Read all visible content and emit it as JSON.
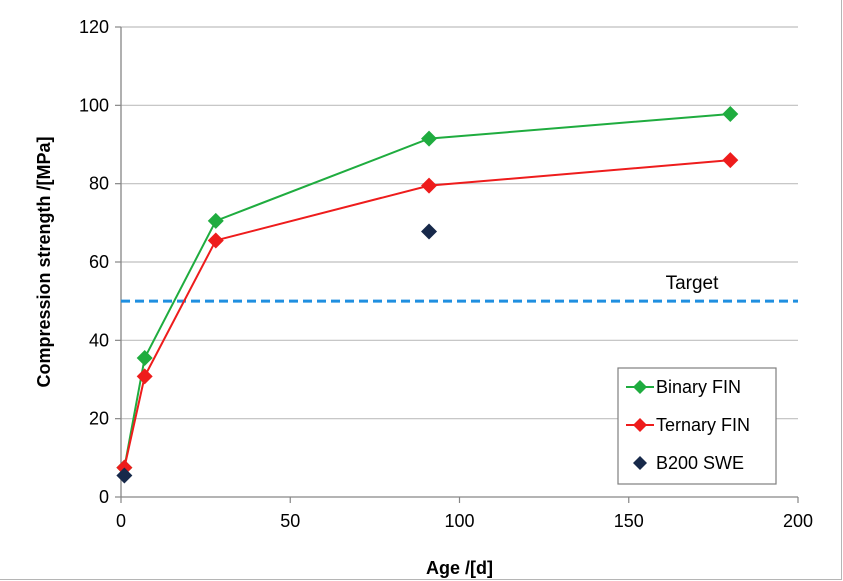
{
  "chart_data": {
    "type": "line",
    "xlabel": "Age /[d]",
    "ylabel": "Compression strength /[MPa]",
    "xlim": [
      0,
      200
    ],
    "ylim": [
      0,
      120
    ],
    "xticks": [
      0,
      50,
      100,
      150,
      200
    ],
    "yticks": [
      0,
      20,
      40,
      60,
      80,
      100,
      120
    ],
    "grid": "horizontal",
    "legend_position": "bottom-right",
    "series": [
      {
        "name": "Binary FIN",
        "style": "line-with-diamond-markers",
        "color": "#1fac3f",
        "points": [
          [
            1,
            7.5
          ],
          [
            7,
            35.5
          ],
          [
            28,
            70.5
          ],
          [
            91,
            91.5
          ],
          [
            180,
            97.8
          ]
        ]
      },
      {
        "name": "Ternary FIN",
        "style": "line-with-diamond-markers",
        "color": "#ee1c1c",
        "points": [
          [
            1,
            7.5
          ],
          [
            7,
            30.8
          ],
          [
            28,
            65.5
          ],
          [
            91,
            79.5
          ],
          [
            180,
            86.0
          ]
        ]
      },
      {
        "name": "B200 SWE",
        "style": "diamond-markers-only",
        "color": "#17294a",
        "points": [
          [
            1,
            5.5
          ],
          [
            91,
            67.8
          ]
        ]
      }
    ],
    "reference_lines": [
      {
        "label": "Target",
        "y": 50,
        "style": "dashed",
        "color": "#1f8fe0"
      }
    ]
  }
}
